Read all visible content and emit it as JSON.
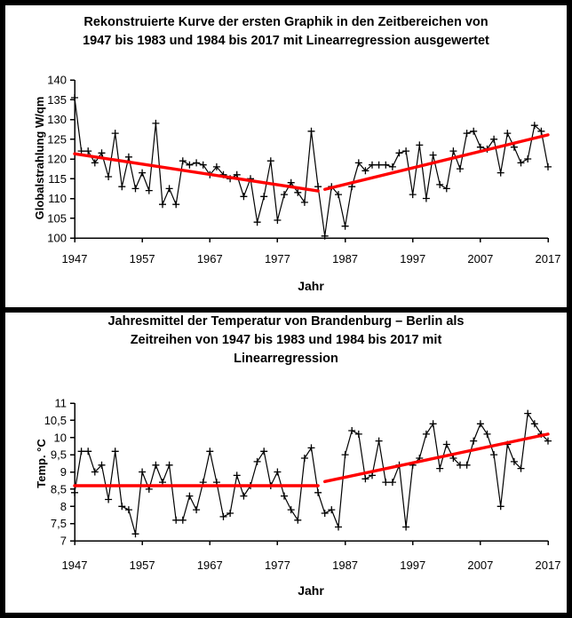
{
  "chart_data": [
    {
      "id": "radiation-chart",
      "type": "line",
      "title_lines": [
        "Rekonstruierte Kurve der ersten Graphik in den Zeitbereichen von",
        "1947 bis 1983 und 1984 bis 2017 mit Linearregression ausgewertet"
      ],
      "xlabel": "Jahr",
      "ylabel": "Globalstrahlung W/qm",
      "xlim": [
        1947,
        2017
      ],
      "ylim": [
        100,
        140
      ],
      "grid": false,
      "legend": "none",
      "series_color": "#000000",
      "marker": "plus",
      "x_ticks": [
        {
          "value": 1947,
          "label": "1947"
        },
        {
          "value": 1957,
          "label": "1957"
        },
        {
          "value": 1967,
          "label": "1967"
        },
        {
          "value": 1977,
          "label": "1977"
        },
        {
          "value": 1987,
          "label": "1987"
        },
        {
          "value": 1997,
          "label": "1997"
        },
        {
          "value": 2007,
          "label": "2007"
        },
        {
          "value": 2017,
          "label": "2017"
        }
      ],
      "y_ticks": [
        {
          "value": 100,
          "label": "100"
        },
        {
          "value": 105,
          "label": "105"
        },
        {
          "value": 110,
          "label": "110"
        },
        {
          "value": 115,
          "label": "115"
        },
        {
          "value": 120,
          "label": "120"
        },
        {
          "value": 125,
          "label": "125"
        },
        {
          "value": 130,
          "label": "130"
        },
        {
          "value": 135,
          "label": "135"
        },
        {
          "value": 140,
          "label": "140"
        }
      ],
      "years_start": 1947,
      "values": [
        135.5,
        122,
        122,
        119,
        121.5,
        115.5,
        126.5,
        113,
        120.5,
        112.5,
        116.5,
        112,
        129,
        108.5,
        112.5,
        108.5,
        119.5,
        118.5,
        119,
        118.5,
        116,
        118,
        116,
        115,
        116,
        110.5,
        115,
        104,
        110.5,
        119.5,
        104.5,
        111,
        114,
        111.5,
        109,
        127,
        113,
        100.5,
        113,
        111,
        103,
        113,
        119,
        117,
        118.5,
        118.5,
        118.5,
        118,
        121.5,
        122,
        111,
        123.5,
        110,
        121,
        113.5,
        112.5,
        122,
        117.5,
        126.5,
        127,
        123,
        122.5,
        125,
        116.5,
        126.5,
        123,
        119,
        120,
        128.5,
        127,
        118
      ],
      "regression": {
        "color": "#FF0000",
        "segments": [
          {
            "x1": 1947,
            "y1": 121.3,
            "x2": 1983,
            "y2": 111.9
          },
          {
            "x1": 1984,
            "y1": 112.3,
            "x2": 2017,
            "y2": 126.1
          }
        ]
      }
    },
    {
      "id": "temperature-chart",
      "type": "line",
      "title_lines": [
        "Jahresmittel der Temperatur von Brandenburg – Berlin als",
        "Zeitreihen von 1947 bis 1983 und 1984 bis 2017 mit",
        "Linearregression"
      ],
      "xlabel": "Jahr",
      "ylabel": "Temp. °C",
      "xlim": [
        1947,
        2017
      ],
      "ylim": [
        7,
        11
      ],
      "grid": false,
      "legend": "none",
      "series_color": "#000000",
      "marker": "plus",
      "x_ticks": [
        {
          "value": 1947,
          "label": "1947"
        },
        {
          "value": 1957,
          "label": "1957"
        },
        {
          "value": 1967,
          "label": "1967"
        },
        {
          "value": 1977,
          "label": "1977"
        },
        {
          "value": 1987,
          "label": "1987"
        },
        {
          "value": 1997,
          "label": "1997"
        },
        {
          "value": 2007,
          "label": "2007"
        },
        {
          "value": 2017,
          "label": "2017"
        }
      ],
      "y_ticks": [
        {
          "value": 7,
          "label": "7"
        },
        {
          "value": 7.5,
          "label": "7,5"
        },
        {
          "value": 8,
          "label": "8"
        },
        {
          "value": 8.5,
          "label": "8,5"
        },
        {
          "value": 9,
          "label": "9"
        },
        {
          "value": 9.5,
          "label": "9,5"
        },
        {
          "value": 10,
          "label": "10"
        },
        {
          "value": 10.5,
          "label": "10,5"
        },
        {
          "value": 11,
          "label": "11"
        }
      ],
      "years_start": 1947,
      "values": [
        8.4,
        9.6,
        9.6,
        9.0,
        9.2,
        8.2,
        9.6,
        8.0,
        7.9,
        7.2,
        9.0,
        8.5,
        9.2,
        8.7,
        9.2,
        7.6,
        7.6,
        8.3,
        7.9,
        8.7,
        9.6,
        8.7,
        7.7,
        7.8,
        8.9,
        8.3,
        8.6,
        9.3,
        9.6,
        8.6,
        9.0,
        8.3,
        7.9,
        7.6,
        9.4,
        9.7,
        8.4,
        7.8,
        7.9,
        7.4,
        9.5,
        10.2,
        10.1,
        8.8,
        8.9,
        9.9,
        8.7,
        8.7,
        9.2,
        7.4,
        9.2,
        9.4,
        10.1,
        10.4,
        9.1,
        9.8,
        9.4,
        9.2,
        9.2,
        9.9,
        10.4,
        10.1,
        9.5,
        8.0,
        9.8,
        9.3,
        9.1,
        10.7,
        10.4,
        10.1,
        9.9
      ],
      "regression": {
        "color": "#FF0000",
        "segments": [
          {
            "x1": 1947,
            "y1": 8.6,
            "x2": 1983,
            "y2": 8.6
          },
          {
            "x1": 1984,
            "y1": 8.72,
            "x2": 2017,
            "y2": 10.1
          }
        ]
      }
    }
  ]
}
